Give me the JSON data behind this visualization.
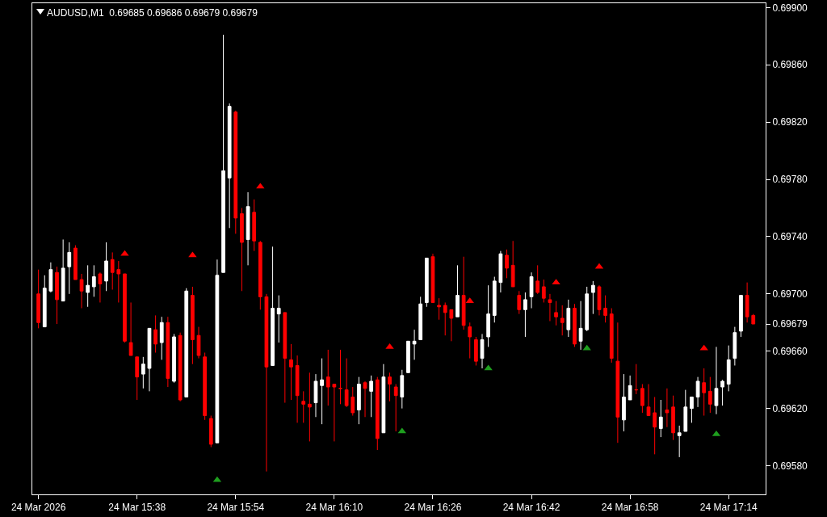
{
  "chart_data": {
    "type": "candlestick",
    "title": "AUDUSD,M1  0.69685 0.69686 0.69679 0.69679",
    "x": [
      "2026-03-24T15:22",
      "2026-03-24T15:23",
      "2026-03-24T15:24",
      "2026-03-24T15:25",
      "2026-03-24T15:26",
      "2026-03-24T15:27",
      "2026-03-24T15:28",
      "2026-03-24T15:29",
      "2026-03-24T15:30",
      "2026-03-24T15:31",
      "2026-03-24T15:32",
      "2026-03-24T15:33",
      "2026-03-24T15:34",
      "2026-03-24T15:35",
      "2026-03-24T15:36",
      "2026-03-24T15:37",
      "2026-03-24T15:38",
      "2026-03-24T15:39",
      "2026-03-24T15:40",
      "2026-03-24T15:41",
      "2026-03-24T15:42",
      "2026-03-24T15:43",
      "2026-03-24T15:44",
      "2026-03-24T15:45",
      "2026-03-24T15:46",
      "2026-03-24T15:47",
      "2026-03-24T15:48",
      "2026-03-24T15:49",
      "2026-03-24T15:50",
      "2026-03-24T15:51",
      "2026-03-24T15:52",
      "2026-03-24T15:53",
      "2026-03-24T15:54",
      "2026-03-24T15:55",
      "2026-03-24T15:56",
      "2026-03-24T15:57",
      "2026-03-24T15:58",
      "2026-03-24T15:59",
      "2026-03-24T16:00",
      "2026-03-24T16:01",
      "2026-03-24T16:02",
      "2026-03-24T16:03",
      "2026-03-24T16:04",
      "2026-03-24T16:05",
      "2026-03-24T16:06",
      "2026-03-24T16:07",
      "2026-03-24T16:08",
      "2026-03-24T16:09",
      "2026-03-24T16:10",
      "2026-03-24T16:11",
      "2026-03-24T16:12",
      "2026-03-24T16:13",
      "2026-03-24T16:14",
      "2026-03-24T16:15",
      "2026-03-24T16:16",
      "2026-03-24T16:17",
      "2026-03-24T16:18",
      "2026-03-24T16:19",
      "2026-03-24T16:20",
      "2026-03-24T16:21",
      "2026-03-24T16:22",
      "2026-03-24T16:23",
      "2026-03-24T16:24",
      "2026-03-24T16:25",
      "2026-03-24T16:26",
      "2026-03-24T16:27",
      "2026-03-24T16:28",
      "2026-03-24T16:29",
      "2026-03-24T16:30",
      "2026-03-24T16:31",
      "2026-03-24T16:32",
      "2026-03-24T16:33",
      "2026-03-24T16:34",
      "2026-03-24T16:35",
      "2026-03-24T16:36",
      "2026-03-24T16:37",
      "2026-03-24T16:38",
      "2026-03-24T16:39",
      "2026-03-24T16:40",
      "2026-03-24T16:41",
      "2026-03-24T16:42",
      "2026-03-24T16:43",
      "2026-03-24T16:44",
      "2026-03-24T16:45",
      "2026-03-24T16:46",
      "2026-03-24T16:47",
      "2026-03-24T16:48",
      "2026-03-24T16:49",
      "2026-03-24T16:50",
      "2026-03-24T16:51",
      "2026-03-24T16:52",
      "2026-03-24T16:53",
      "2026-03-24T16:54",
      "2026-03-24T16:55",
      "2026-03-24T16:56",
      "2026-03-24T16:57",
      "2026-03-24T16:58",
      "2026-03-24T16:59",
      "2026-03-24T17:00",
      "2026-03-24T17:01",
      "2026-03-24T17:02",
      "2026-03-24T17:03",
      "2026-03-24T17:04",
      "2026-03-24T17:05",
      "2026-03-24T17:06",
      "2026-03-24T17:07",
      "2026-03-24T17:08",
      "2026-03-24T17:09",
      "2026-03-24T17:10",
      "2026-03-24T17:11",
      "2026-03-24T17:12",
      "2026-03-24T17:13",
      "2026-03-24T17:14",
      "2026-03-24T17:15",
      "2026-03-24T17:16",
      "2026-03-24T17:17",
      "2026-03-24T17:18"
    ],
    "ohlc": [
      [
        0.697,
        0.69717,
        0.69676,
        0.6968
      ],
      [
        0.69677,
        0.69713,
        0.69677,
        0.69704
      ],
      [
        0.69702,
        0.69722,
        0.69701,
        0.69717
      ],
      [
        0.69715,
        0.69719,
        0.69679,
        0.69696
      ],
      [
        0.69695,
        0.69738,
        0.69695,
        0.69718
      ],
      [
        0.69719,
        0.69736,
        0.697,
        0.69729
      ],
      [
        0.69732,
        0.69734,
        0.6971,
        0.6971
      ],
      [
        0.6971,
        0.69714,
        0.6969,
        0.69702
      ],
      [
        0.69701,
        0.6972,
        0.69691,
        0.69706
      ],
      [
        0.69705,
        0.6972,
        0.69698,
        0.69712
      ],
      [
        0.69714,
        0.69715,
        0.69694,
        0.69707
      ],
      [
        0.69709,
        0.69736,
        0.69702,
        0.69723
      ],
      [
        0.69724,
        0.69729,
        0.69703,
        0.69715
      ],
      [
        0.69717,
        0.69723,
        0.69694,
        0.69714
      ],
      [
        0.69714,
        0.69714,
        0.69666,
        0.69667
      ],
      [
        0.69666,
        0.69694,
        0.69657,
        0.69657
      ],
      [
        0.69656,
        0.69656,
        0.69626,
        0.69642
      ],
      [
        0.69644,
        0.69656,
        0.69634,
        0.69651
      ],
      [
        0.69648,
        0.69676,
        0.69632,
        0.69676
      ],
      [
        0.69675,
        0.69685,
        0.69659,
        0.69665
      ],
      [
        0.69666,
        0.69684,
        0.69654,
        0.6968
      ],
      [
        0.6968,
        0.69684,
        0.69635,
        0.69641
      ],
      [
        0.69639,
        0.69672,
        0.69638,
        0.6967
      ],
      [
        0.69671,
        0.69673,
        0.69625,
        0.69626
      ],
      [
        0.69628,
        0.69704,
        0.69628,
        0.69702
      ],
      [
        0.69699,
        0.69705,
        0.69651,
        0.69668
      ],
      [
        0.69671,
        0.69677,
        0.69655,
        0.69657
      ],
      [
        0.69656,
        0.69659,
        0.69612,
        0.69615
      ],
      [
        0.69613,
        0.69615,
        0.69593,
        0.69595
      ],
      [
        0.69596,
        0.69724,
        0.69596,
        0.69713
      ],
      [
        0.69715,
        0.69881,
        0.69715,
        0.69786
      ],
      [
        0.69781,
        0.69833,
        0.69746,
        0.69831
      ],
      [
        0.69827,
        0.69828,
        0.69742,
        0.69753
      ],
      [
        0.69756,
        0.6976,
        0.69702,
        0.69736
      ],
      [
        0.69738,
        0.69771,
        0.6972,
        0.69761
      ],
      [
        0.69757,
        0.69766,
        0.6973,
        0.69737
      ],
      [
        0.69736,
        0.69737,
        0.69689,
        0.69698
      ],
      [
        0.69698,
        0.697,
        0.69576,
        0.69649
      ],
      [
        0.6965,
        0.69733,
        0.6965,
        0.6969
      ],
      [
        0.69686,
        0.69699,
        0.69666,
        0.6969
      ],
      [
        0.69687,
        0.69687,
        0.69624,
        0.69655
      ],
      [
        0.69654,
        0.69665,
        0.69626,
        0.69649
      ],
      [
        0.6965,
        0.69657,
        0.6961,
        0.69629
      ],
      [
        0.69625,
        0.69632,
        0.6961,
        0.69623
      ],
      [
        0.69623,
        0.69645,
        0.69597,
        0.69621
      ],
      [
        0.69624,
        0.69644,
        0.69614,
        0.69639
      ],
      [
        0.69636,
        0.69655,
        0.69609,
        0.6964
      ],
      [
        0.69642,
        0.69661,
        0.69622,
        0.69635
      ],
      [
        0.69637,
        0.69637,
        0.69597,
        0.69635
      ],
      [
        0.69634,
        0.69661,
        0.69623,
        0.69634
      ],
      [
        0.69633,
        0.69655,
        0.69621,
        0.69622
      ],
      [
        0.69628,
        0.69635,
        0.69615,
        0.69617
      ],
      [
        0.69619,
        0.69642,
        0.69609,
        0.69637
      ],
      [
        0.69638,
        0.69639,
        0.69614,
        0.69634
      ],
      [
        0.69632,
        0.69643,
        0.69614,
        0.69639
      ],
      [
        0.6964,
        0.69642,
        0.69591,
        0.69599
      ],
      [
        0.69603,
        0.69651,
        0.69603,
        0.69642
      ],
      [
        0.69642,
        0.69645,
        0.69625,
        0.69637
      ],
      [
        0.69635,
        0.69637,
        0.69604,
        0.69629
      ],
      [
        0.69628,
        0.69647,
        0.6962,
        0.69643
      ],
      [
        0.69645,
        0.69667,
        0.69645,
        0.69667
      ],
      [
        0.69665,
        0.69675,
        0.69654,
        0.69667
      ],
      [
        0.69668,
        0.69698,
        0.69668,
        0.69693
      ],
      [
        0.69694,
        0.69725,
        0.69691,
        0.69725
      ],
      [
        0.69726,
        0.69728,
        0.69694,
        0.69694
      ],
      [
        0.69692,
        0.69697,
        0.69682,
        0.69691
      ],
      [
        0.69692,
        0.69694,
        0.69671,
        0.69687
      ],
      [
        0.69689,
        0.69689,
        0.69667,
        0.69683
      ],
      [
        0.69684,
        0.6972,
        0.69684,
        0.69699
      ],
      [
        0.69699,
        0.69726,
        0.69675,
        0.69678
      ],
      [
        0.69677,
        0.6968,
        0.69655,
        0.6967
      ],
      [
        0.69668,
        0.6967,
        0.6965,
        0.69653
      ],
      [
        0.69655,
        0.69672,
        0.69648,
        0.69668
      ],
      [
        0.6967,
        0.69706,
        0.69663,
        0.69686
      ],
      [
        0.69685,
        0.69712,
        0.6968,
        0.69709
      ],
      [
        0.69708,
        0.6973,
        0.69701,
        0.69728
      ],
      [
        0.69727,
        0.69731,
        0.69711,
        0.69718
      ],
      [
        0.6972,
        0.69737,
        0.69705,
        0.69705
      ],
      [
        0.69699,
        0.69702,
        0.69686,
        0.69689
      ],
      [
        0.69689,
        0.69701,
        0.6967,
        0.69696
      ],
      [
        0.69698,
        0.69715,
        0.6969,
        0.69712
      ],
      [
        0.69709,
        0.6972,
        0.697,
        0.69701
      ],
      [
        0.69705,
        0.6971,
        0.69694,
        0.69697
      ],
      [
        0.69696,
        0.697,
        0.69681,
        0.69694
      ],
      [
        0.69687,
        0.69695,
        0.69678,
        0.69684
      ],
      [
        0.69683,
        0.69692,
        0.69671,
        0.6968
      ],
      [
        0.69675,
        0.69696,
        0.6967,
        0.6969
      ],
      [
        0.6969,
        0.69693,
        0.69663,
        0.69665
      ],
      [
        0.69667,
        0.69695,
        0.69661,
        0.69676
      ],
      [
        0.69675,
        0.69705,
        0.69674,
        0.697
      ],
      [
        0.69701,
        0.69709,
        0.69686,
        0.69706
      ],
      [
        0.69705,
        0.69706,
        0.69685,
        0.69689
      ],
      [
        0.6969,
        0.69699,
        0.6968,
        0.69685
      ],
      [
        0.69686,
        0.6969,
        0.69652,
        0.69655
      ],
      [
        0.69653,
        0.6968,
        0.69596,
        0.69614
      ],
      [
        0.69612,
        0.69644,
        0.69604,
        0.69628
      ],
      [
        0.69626,
        0.69643,
        0.69626,
        0.69636
      ],
      [
        0.69633,
        0.69651,
        0.6963,
        0.69633
      ],
      [
        0.69634,
        0.69637,
        0.69617,
        0.69622
      ],
      [
        0.69621,
        0.69637,
        0.69615,
        0.69615
      ],
      [
        0.69617,
        0.69628,
        0.69588,
        0.69607
      ],
      [
        0.69606,
        0.69626,
        0.696,
        0.69614
      ],
      [
        0.69619,
        0.69634,
        0.69607,
        0.69617
      ],
      [
        0.69621,
        0.69629,
        0.69598,
        0.69603
      ],
      [
        0.69601,
        0.69608,
        0.69586,
        0.69603
      ],
      [
        0.69604,
        0.69633,
        0.69604,
        0.69621
      ],
      [
        0.6962,
        0.69628,
        0.6961,
        0.69628
      ],
      [
        0.69628,
        0.69642,
        0.69621,
        0.69639
      ],
      [
        0.69638,
        0.69648,
        0.69615,
        0.69631
      ],
      [
        0.69632,
        0.69642,
        0.69617,
        0.69623
      ],
      [
        0.69622,
        0.69663,
        0.69616,
        0.69634
      ],
      [
        0.69635,
        0.6964,
        0.69622,
        0.69639
      ],
      [
        0.69637,
        0.69664,
        0.69632,
        0.69654
      ],
      [
        0.69655,
        0.69677,
        0.6965,
        0.69673
      ],
      [
        0.69674,
        0.69699,
        0.6967,
        0.69699
      ],
      [
        0.69699,
        0.69708,
        0.6968,
        0.69684
      ],
      [
        0.69685,
        0.69686,
        0.69679,
        0.69679
      ]
    ],
    "series": [
      {
        "type": "scatter",
        "color": "#ff0000",
        "marker": "triangle",
        "x": [
          "2026-03-24T15:36",
          "2026-03-24T15:47",
          "2026-03-24T15:58",
          "2026-03-24T16:19",
          "2026-03-24T16:32",
          "2026-03-24T16:46",
          "2026-03-24T16:53",
          "2026-03-24T17:10"
        ],
        "values": [
          0.69728,
          0.69727,
          0.69775,
          0.69663,
          0.69695,
          0.69708,
          0.69719,
          0.69662
        ]
      },
      {
        "type": "scatter",
        "color": "#1e9e1e",
        "marker": "triangle",
        "x": [
          "2026-03-24T15:51",
          "2026-03-24T16:21",
          "2026-03-24T16:35",
          "2026-03-24T16:51",
          "2026-03-24T17:12"
        ],
        "values": [
          0.6957,
          0.69604,
          0.69648,
          0.69662,
          0.69602
        ]
      }
    ],
    "xlim": [
      "2026-03-24T15:21",
      "2026-03-24T17:20"
    ],
    "xticks": [
      {
        "value": "2026-03-24T15:22",
        "label": "24 Mar 2026"
      },
      {
        "value": "2026-03-24T15:38",
        "label": "24 Mar 15:38"
      },
      {
        "value": "2026-03-24T15:54",
        "label": "24 Mar 15:54"
      },
      {
        "value": "2026-03-24T16:10",
        "label": "24 Mar 16:10"
      },
      {
        "value": "2026-03-24T16:26",
        "label": "24 Mar 16:26"
      },
      {
        "value": "2026-03-24T16:42",
        "label": "24 Mar 16:42"
      },
      {
        "value": "2026-03-24T16:58",
        "label": "24 Mar 16:58"
      },
      {
        "value": "2026-03-24T17:14",
        "label": "24 Mar 17:14"
      }
    ],
    "ylim": [
      0.6956,
      0.69903
    ],
    "yticks": [
      {
        "value": 0.699,
        "label": "0.69900"
      },
      {
        "value": 0.6986,
        "label": "0.69860"
      },
      {
        "value": 0.6982,
        "label": "0.69820"
      },
      {
        "value": 0.6978,
        "label": "0.69780"
      },
      {
        "value": 0.6974,
        "label": "0.69740"
      },
      {
        "value": 0.697,
        "label": "0.69700"
      },
      {
        "value": 0.69679,
        "label": "0.69679"
      },
      {
        "value": 0.6966,
        "label": "0.69660"
      },
      {
        "value": 0.6962,
        "label": "0.69620"
      },
      {
        "value": 0.6958,
        "label": "0.69580"
      }
    ],
    "grid": false
  }
}
